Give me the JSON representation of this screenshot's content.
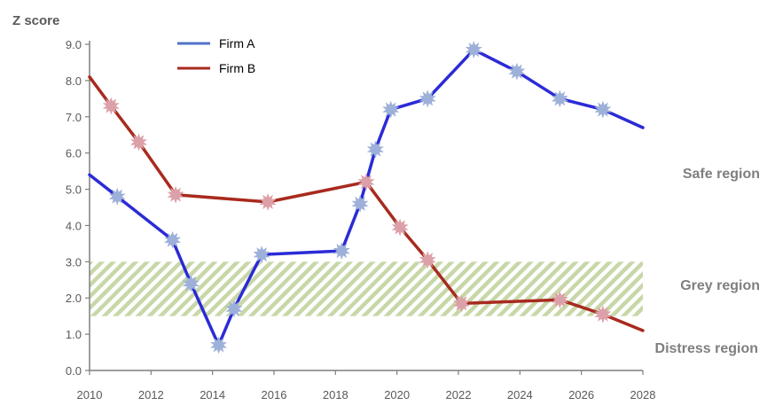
{
  "chart_data": {
    "type": "line",
    "ylabel": "Z  score",
    "xlabel": "",
    "xlim": [
      2010,
      2028
    ],
    "ylim": [
      0,
      9
    ],
    "x_ticks": [
      "2010",
      "2012",
      "2014",
      "2016",
      "2018",
      "2020",
      "2022",
      "2024",
      "2026",
      "2028"
    ],
    "y_ticks": [
      "0.0",
      "1.0",
      "2.0",
      "3.0",
      "4.0",
      "5.0",
      "6.0",
      "7.0",
      "8.0",
      "9.0"
    ],
    "grey_band": [
      1.5,
      3.0
    ],
    "region_labels": {
      "safe": "Safe region",
      "grey": "Grey region",
      "distress": "Distress region"
    },
    "legend_position": "top",
    "series": [
      {
        "name": "Firm A",
        "color": "#2b2bd6",
        "marker_color": "#9db0d9",
        "x": [
          2010,
          2010.9,
          2012.7,
          2013.3,
          2014.2,
          2014.7,
          2015.6,
          2018.2,
          2018.8,
          2019.3,
          2019.8,
          2021,
          2022.5,
          2023.9,
          2025.3,
          2026.7,
          2028
        ],
        "y": [
          5.4,
          4.8,
          3.6,
          2.4,
          0.7,
          1.7,
          3.2,
          3.3,
          4.6,
          6.1,
          7.2,
          7.5,
          8.85,
          8.25,
          7.5,
          7.2,
          6.7
        ]
      },
      {
        "name": "Firm B",
        "color": "#a82a1e",
        "marker_color": "#dca0a8",
        "x": [
          2010,
          2010.7,
          2011.6,
          2012.8,
          2015.8,
          2019,
          2020.1,
          2021,
          2022.1,
          2025.3,
          2026.7,
          2028
        ],
        "y": [
          8.1,
          7.3,
          6.3,
          4.85,
          4.65,
          5.2,
          3.95,
          3.05,
          1.85,
          1.95,
          1.55,
          1.1
        ]
      }
    ]
  }
}
